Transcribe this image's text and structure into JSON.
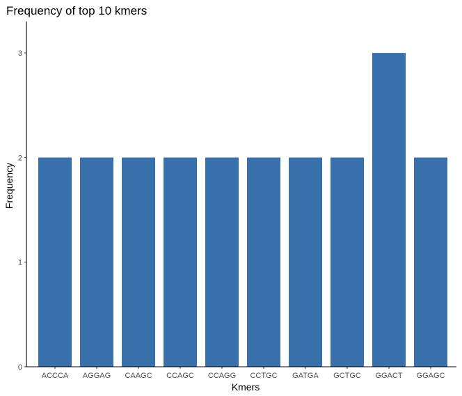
{
  "chart_data": {
    "type": "bar",
    "title": "Frequency of top 10 kmers",
    "xlabel": "Kmers",
    "ylabel": "Frequency",
    "categories": [
      "ACCCA",
      "AGGAG",
      "CAAGC",
      "CCAGC",
      "CCAGG",
      "CCTGC",
      "GATGA",
      "GCTGC",
      "GGACT",
      "GGAGC"
    ],
    "values": [
      2,
      2,
      2,
      2,
      2,
      2,
      2,
      2,
      3,
      2
    ],
    "ylim": [
      0,
      3.3
    ],
    "yticks": [
      0,
      1,
      2,
      3
    ],
    "grid": false,
    "legend": "none",
    "bar_color": "#3870AB"
  }
}
